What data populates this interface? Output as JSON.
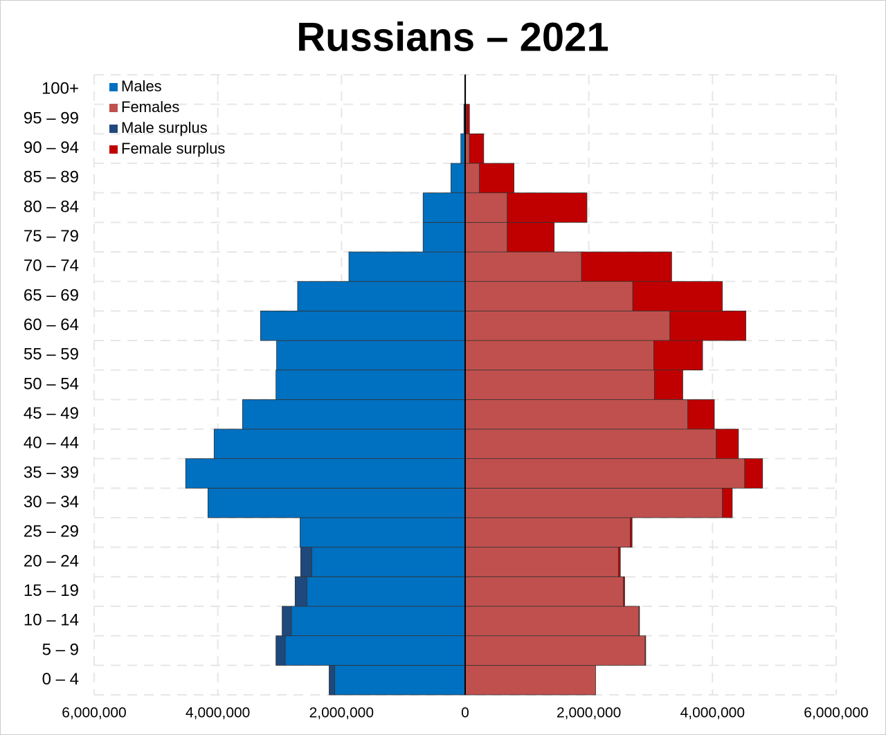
{
  "chart_data": {
    "type": "stacked-horizontal-bar",
    "title": "Russians – 2021",
    "categories": [
      "0 – 4",
      "5 – 9",
      "10 – 14",
      "15 – 19",
      "20 – 24",
      "25 – 29",
      "30 – 34",
      "35 – 39",
      "40 – 44",
      "45 – 49",
      "50 – 54",
      "55 – 59",
      "60 – 64",
      "65 – 69",
      "70 – 74",
      "75 – 79",
      "80 – 84",
      "85 – 89",
      "90 – 94",
      "95 – 99",
      "100+"
    ],
    "series": [
      {
        "name": "Males",
        "color": "#0070c0",
        "values": [
          -2110000,
          -2910000,
          -2810000,
          -2560000,
          -2480000,
          -2670000,
          -4160000,
          -4520000,
          -4060000,
          -3600000,
          -3060000,
          -3050000,
          -3310000,
          -2710000,
          -1880000,
          -680000,
          -680000,
          -230000,
          -70000,
          -20000,
          -3000
        ]
      },
      {
        "name": "Females",
        "color": "#c0504d",
        "values": [
          2110000,
          2910000,
          2810000,
          2560000,
          2480000,
          2670000,
          4160000,
          4520000,
          4060000,
          3600000,
          3060000,
          3050000,
          3310000,
          2710000,
          1880000,
          680000,
          680000,
          230000,
          70000,
          20000,
          3000
        ]
      },
      {
        "name": "Male surplus",
        "color": "#1f497d",
        "values": [
          -90000,
          -150000,
          -150000,
          -190000,
          -180000,
          null,
          null,
          null,
          null,
          null,
          null,
          null,
          null,
          null,
          null,
          null,
          null,
          null,
          null,
          null,
          null
        ]
      },
      {
        "name": "Female surplus",
        "color": "#c00000",
        "values": [
          null,
          10000,
          10000,
          20000,
          30000,
          30000,
          160000,
          290000,
          360000,
          430000,
          460000,
          790000,
          1230000,
          1450000,
          1460000,
          760000,
          1290000,
          560000,
          230000,
          50000,
          5000
        ]
      }
    ],
    "xlim": [
      -6000000,
      6000000
    ],
    "xticks": [
      {
        "value": -6000000,
        "label": "6,000,000"
      },
      {
        "value": -4000000,
        "label": "4,000,000"
      },
      {
        "value": -2000000,
        "label": "2,000,000"
      },
      0,
      {
        "value": 2000000,
        "label": "2,000,000"
      },
      {
        "value": 4000000,
        "label": "4,000,000"
      },
      {
        "value": 6000000,
        "label": "6,000,000"
      }
    ],
    "grid": true,
    "legend": "top-left"
  }
}
